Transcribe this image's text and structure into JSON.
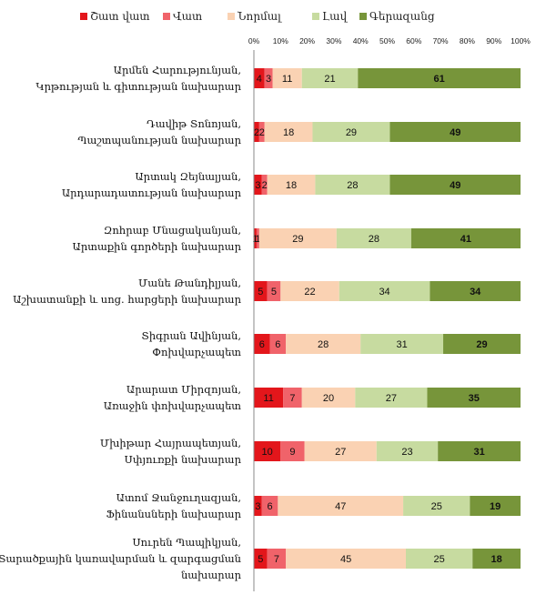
{
  "chart_data": {
    "type": "bar",
    "orientation": "horizontal",
    "stacked": "percent",
    "title": "",
    "xlabel": "",
    "ylabel": "",
    "xlim": [
      0,
      100
    ],
    "x_ticks": [
      "0%",
      "10%",
      "20%",
      "30%",
      "40%",
      "50%",
      "60%",
      "70%",
      "80%",
      "90%",
      "100%"
    ],
    "legend_position": "top",
    "grid": false,
    "categories": [
      [
        "Արմեն Հարությունյան,",
        "Կրթության և գիտության նախարար"
      ],
      [
        "Դավիթ Տոնոյան,",
        "Պաշտպանության նախարար"
      ],
      [
        "Արտակ Զեյնալյան,",
        "Արդարադատության նախարար"
      ],
      [
        "Զոհրաբ Մնացականյան,",
        "Արտաքին գործերի նախարար"
      ],
      [
        "Մանե Թանդիլյան,",
        "Աշխատանքի և սոց. հարցերի նախարար"
      ],
      [
        "Տիգրան Ավինյան,",
        "Փոխվարչապետ"
      ],
      [
        "Արարատ Միրզոյան,",
        "Առաջին փոխվարչապետ"
      ],
      [
        "Մխիթար Հայրապետյան,",
        "Սփյուռքի նախարար"
      ],
      [
        "Ատոմ Ջանջուղազյան,",
        "Ֆինանսների նախարար"
      ],
      [
        "Սուրեն Պապիկյան,",
        "Տարածքային կառավարման և զարգացման",
        "նախարար"
      ]
    ],
    "series": [
      {
        "name": "Շատ վատ",
        "color": "#e3161b",
        "values": [
          4,
          2,
          3,
          1,
          5,
          6,
          11,
          10,
          3,
          5
        ]
      },
      {
        "name": "Վատ",
        "color": "#f0636a",
        "values": [
          3,
          2,
          2,
          1,
          5,
          6,
          7,
          9,
          6,
          7
        ]
      },
      {
        "name": "Նորմալ",
        "color": "#fad2b3",
        "values": [
          11,
          18,
          18,
          29,
          22,
          28,
          20,
          27,
          47,
          45
        ]
      },
      {
        "name": "Լավ",
        "color": "#c7dba0",
        "values": [
          21,
          29,
          28,
          28,
          34,
          31,
          27,
          23,
          25,
          25
        ]
      },
      {
        "name": "Գերազանց",
        "color": "#77953a",
        "values": [
          61,
          49,
          49,
          41,
          34,
          29,
          35,
          31,
          19,
          18
        ]
      }
    ]
  }
}
